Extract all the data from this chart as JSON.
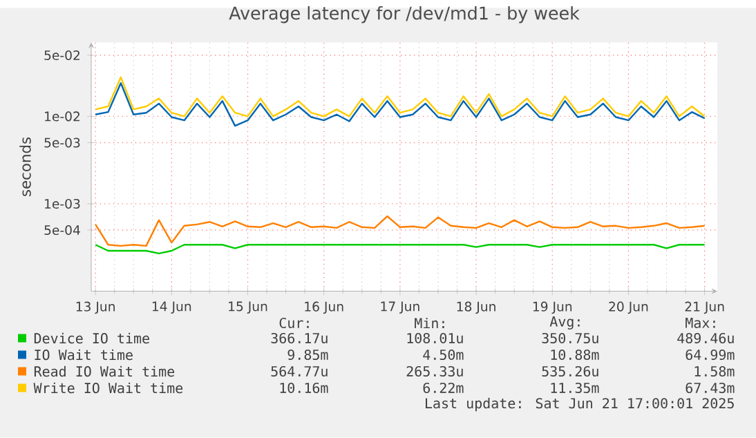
{
  "chart_data": {
    "type": "line",
    "title": "Average latency for /dev/md1 - by week",
    "ylabel": "seconds",
    "log": true,
    "grid": true,
    "legend": "bottom",
    "xlim": [
      "2025-06-13T10:40",
      "2025-06-21T16:00"
    ],
    "xticks": [
      {
        "value": "2025-06-13T12:00",
        "label": "13 Jun"
      },
      {
        "value": "2025-06-14T12:00",
        "label": "14 Jun"
      },
      {
        "value": "2025-06-15T12:00",
        "label": "15 Jun"
      },
      {
        "value": "2025-06-16T12:00",
        "label": "16 Jun"
      },
      {
        "value": "2025-06-17T12:00",
        "label": "17 Jun"
      },
      {
        "value": "2025-06-18T12:00",
        "label": "18 Jun"
      },
      {
        "value": "2025-06-19T12:00",
        "label": "19 Jun"
      },
      {
        "value": "2025-06-20T12:00",
        "label": "20 Jun"
      },
      {
        "value": "2025-06-21T12:00",
        "label": "21 Jun"
      }
    ],
    "ylim": [
      0.0001,
      0.07
    ],
    "yticks": [
      {
        "value": 0.0005,
        "label": "5e-04"
      },
      {
        "value": 0.001,
        "label": "1e-03"
      },
      {
        "value": 0.005,
        "label": "5e-03"
      },
      {
        "value": 0.01,
        "label": "1e-02"
      },
      {
        "value": 0.05,
        "label": "5e-02"
      }
    ],
    "x": [
      "2025-06-13T12:00",
      "2025-06-13T16:00",
      "2025-06-13T20:00",
      "2025-06-14T00:00",
      "2025-06-14T04:00",
      "2025-06-14T08:00",
      "2025-06-14T12:00",
      "2025-06-14T16:00",
      "2025-06-14T20:00",
      "2025-06-15T00:00",
      "2025-06-15T04:00",
      "2025-06-15T08:00",
      "2025-06-15T12:00",
      "2025-06-15T16:00",
      "2025-06-15T20:00",
      "2025-06-16T00:00",
      "2025-06-16T04:00",
      "2025-06-16T08:00",
      "2025-06-16T12:00",
      "2025-06-16T16:00",
      "2025-06-16T20:00",
      "2025-06-17T00:00",
      "2025-06-17T04:00",
      "2025-06-17T08:00",
      "2025-06-17T12:00",
      "2025-06-17T16:00",
      "2025-06-17T20:00",
      "2025-06-18T00:00",
      "2025-06-18T04:00",
      "2025-06-18T08:00",
      "2025-06-18T12:00",
      "2025-06-18T16:00",
      "2025-06-18T20:00",
      "2025-06-19T00:00",
      "2025-06-19T04:00",
      "2025-06-19T08:00",
      "2025-06-19T12:00",
      "2025-06-19T16:00",
      "2025-06-19T20:00",
      "2025-06-20T00:00",
      "2025-06-20T04:00",
      "2025-06-20T08:00",
      "2025-06-20T12:00",
      "2025-06-20T16:00",
      "2025-06-20T20:00",
      "2025-06-21T00:00",
      "2025-06-21T04:00",
      "2025-06-21T08:00",
      "2025-06-21T12:00"
    ],
    "series": [
      {
        "name": "Device IO time",
        "color": "#00cc00",
        "values": [
          0.00034,
          0.00029,
          0.00029,
          0.00029,
          0.00029,
          0.00027,
          0.00029,
          0.00034,
          0.00034,
          0.00034,
          0.00034,
          0.00031,
          0.00034,
          0.00034,
          0.00034,
          0.00034,
          0.00034,
          0.00034,
          0.00034,
          0.00034,
          0.00034,
          0.00034,
          0.00034,
          0.00034,
          0.00034,
          0.00034,
          0.00034,
          0.00034,
          0.00034,
          0.00034,
          0.00032,
          0.00034,
          0.00034,
          0.00034,
          0.00034,
          0.00032,
          0.00034,
          0.00034,
          0.00034,
          0.00034,
          0.00034,
          0.00034,
          0.00034,
          0.00034,
          0.00034,
          0.00031,
          0.00034,
          0.00034,
          0.00034
        ]
      },
      {
        "name": "IO Wait time",
        "color": "#0066b3",
        "values": [
          0.0105,
          0.0112,
          0.024,
          0.0105,
          0.011,
          0.014,
          0.0098,
          0.009,
          0.014,
          0.0098,
          0.015,
          0.0078,
          0.009,
          0.014,
          0.009,
          0.0105,
          0.013,
          0.0098,
          0.009,
          0.0105,
          0.0088,
          0.014,
          0.0098,
          0.015,
          0.0098,
          0.0105,
          0.014,
          0.0098,
          0.009,
          0.015,
          0.0098,
          0.016,
          0.009,
          0.0105,
          0.014,
          0.0098,
          0.009,
          0.015,
          0.0098,
          0.0105,
          0.014,
          0.0098,
          0.009,
          0.013,
          0.0098,
          0.015,
          0.009,
          0.0112,
          0.0095
        ]
      },
      {
        "name": "Read IO Wait time",
        "color": "#ff8000",
        "values": [
          0.00058,
          0.00034,
          0.00033,
          0.00034,
          0.00033,
          0.00065,
          0.00036,
          0.00056,
          0.00058,
          0.00062,
          0.00055,
          0.00063,
          0.00055,
          0.00054,
          0.0006,
          0.00054,
          0.00062,
          0.00054,
          0.00055,
          0.00053,
          0.00062,
          0.00054,
          0.00053,
          0.00072,
          0.00054,
          0.00055,
          0.00053,
          0.0007,
          0.00056,
          0.00054,
          0.00053,
          0.0006,
          0.00054,
          0.00065,
          0.00055,
          0.00063,
          0.00054,
          0.00053,
          0.00054,
          0.00062,
          0.00055,
          0.00056,
          0.00053,
          0.00054,
          0.00056,
          0.0006,
          0.00053,
          0.00054,
          0.00056
        ]
      },
      {
        "name": "Write IO Wait time",
        "color": "#ffcc00",
        "values": [
          0.012,
          0.013,
          0.028,
          0.012,
          0.013,
          0.016,
          0.011,
          0.01,
          0.016,
          0.011,
          0.017,
          0.011,
          0.01,
          0.016,
          0.01,
          0.012,
          0.015,
          0.011,
          0.01,
          0.012,
          0.01,
          0.016,
          0.011,
          0.017,
          0.011,
          0.012,
          0.016,
          0.011,
          0.01,
          0.017,
          0.011,
          0.018,
          0.01,
          0.012,
          0.016,
          0.011,
          0.01,
          0.017,
          0.011,
          0.012,
          0.016,
          0.011,
          0.01,
          0.015,
          0.011,
          0.017,
          0.01,
          0.013,
          0.01
        ]
      }
    ],
    "annotations": [
      "Cur:",
      "Min:",
      "Avg:",
      "Max:",
      "366.17u",
      "108.01u",
      "350.75u",
      "489.46u",
      "9.85m",
      "4.50m",
      "10.88m",
      "64.99m",
      "564.77u",
      "265.33u",
      "535.26u",
      "1.58m",
      "10.16m",
      "6.22m",
      "11.35m",
      "67.43m",
      "Last update: Sat Jun 21 17:00:01 2025"
    ]
  }
}
